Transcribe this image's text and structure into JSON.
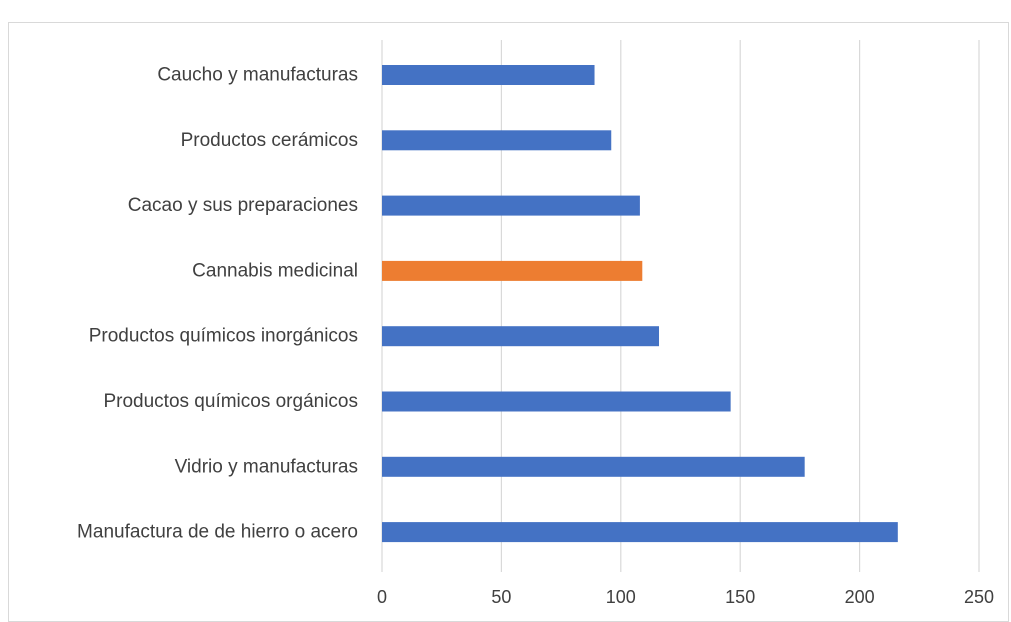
{
  "chart_data": {
    "type": "bar",
    "orientation": "horizontal",
    "title": "",
    "xlabel": "",
    "ylabel": "",
    "xlim": [
      0,
      250
    ],
    "xticks": [
      0,
      50,
      100,
      150,
      200,
      250
    ],
    "grid": true,
    "legend": "none",
    "categories": [
      "Caucho y manufacturas",
      "Productos cerámicos",
      "Cacao y sus preparaciones",
      "Cannabis medicinal",
      "Productos químicos inorgánicos",
      "Productos químicos orgánicos",
      "Vidrio y manufacturas",
      "Manufactura de de hierro o acero"
    ],
    "values": [
      89,
      96,
      108,
      109,
      116,
      146,
      177,
      216
    ],
    "colors": [
      "#4472c4",
      "#4472c4",
      "#4472c4",
      "#ed7d31",
      "#4472c4",
      "#4472c4",
      "#4472c4",
      "#4472c4"
    ],
    "default_color": "#4472c4",
    "highlight_color": "#ed7d31"
  }
}
